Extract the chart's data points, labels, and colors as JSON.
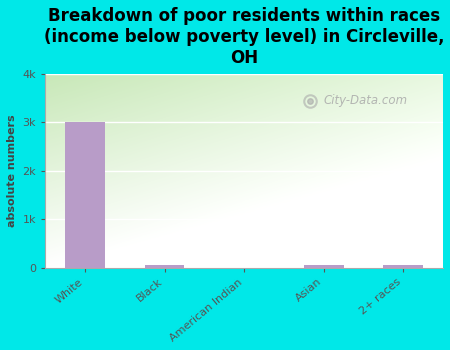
{
  "title": "Breakdown of poor residents within races\n(income below poverty level) in Circleville,\nOH",
  "categories": [
    "White",
    "Black",
    "American Indian",
    "Asian",
    "2+ races"
  ],
  "values": [
    3000,
    60,
    0,
    50,
    45
  ],
  "bar_color": "#b89cc8",
  "background_color": "#00e8e8",
  "plot_bg_gradient_left": "#c8e8b8",
  "plot_bg_gradient_right": "#f0f8ee",
  "ylabel": "absolute numbers",
  "ylim": [
    0,
    4000
  ],
  "yticks": [
    0,
    1000,
    2000,
    3000,
    4000
  ],
  "ytick_labels": [
    "0",
    "1k",
    "2k",
    "3k",
    "4k"
  ],
  "title_fontsize": 12,
  "axis_label_fontsize": 8,
  "tick_fontsize": 8,
  "watermark": "City-Data.com"
}
